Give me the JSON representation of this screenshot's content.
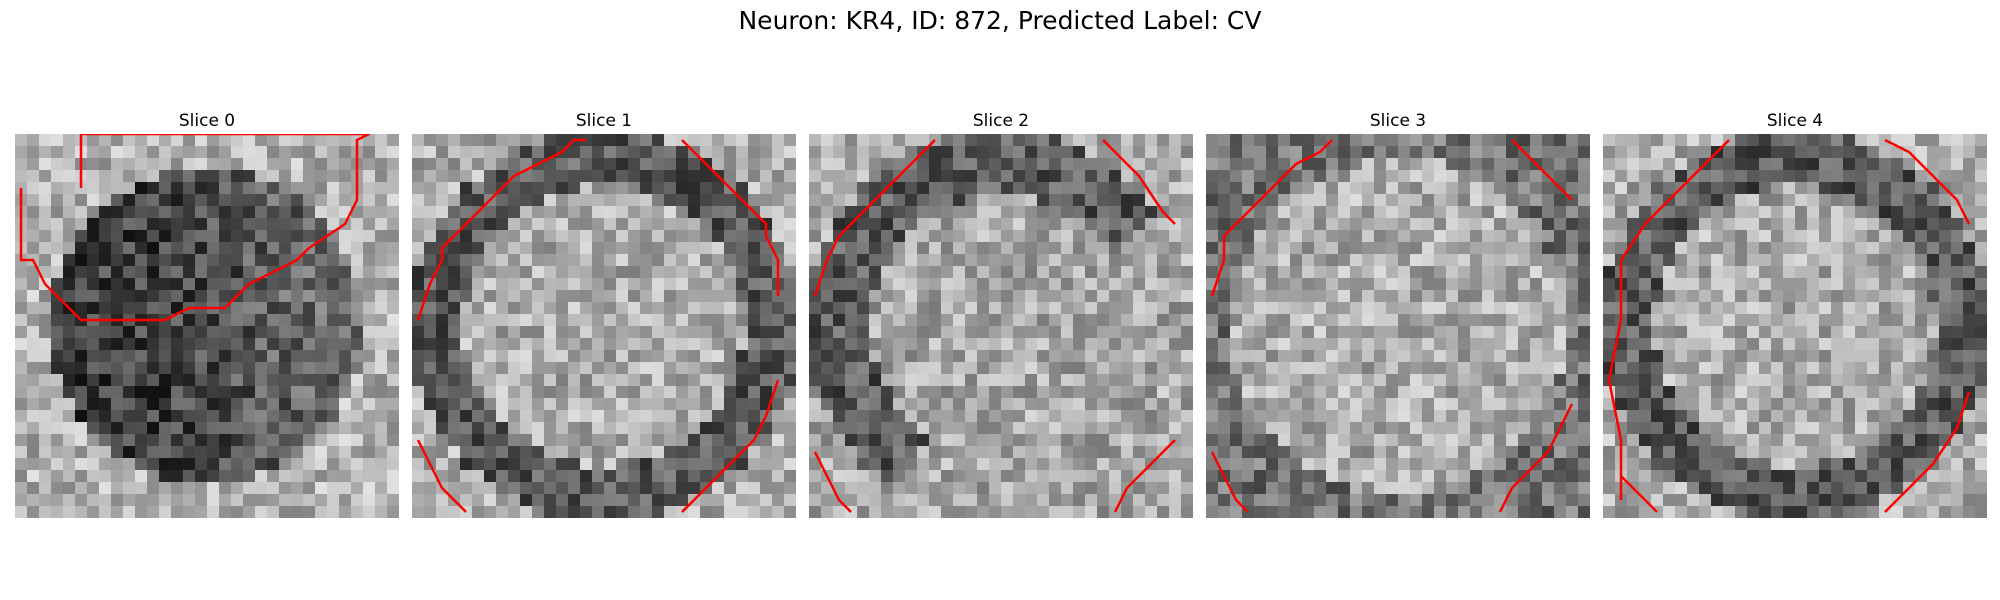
{
  "figure": {
    "title": "Neuron: KR4, ID: 872, Predicted Label: CV",
    "colormap": "gray",
    "contour_color": "#ff0000",
    "grid_size": 32
  },
  "slices": [
    {
      "title": "Slice 0",
      "mean_intensity": 0.38,
      "dark_region": "center disk",
      "contours": [
        [
          [
            5,
            0
          ],
          [
            5,
            -5
          ],
          [
            10,
            -10
          ],
          [
            10,
            -12
          ],
          [
            12,
            -14
          ],
          [
            15,
            -15
          ],
          [
            20,
            -15
          ],
          [
            24,
            -13
          ],
          [
            25,
            -12
          ],
          [
            28,
            -9
          ],
          [
            28,
            -6
          ],
          [
            29,
            -5
          ],
          [
            28,
            -4
          ],
          [
            28,
            1
          ],
          [
            27,
            3
          ],
          [
            24,
            5
          ],
          [
            23,
            6
          ],
          [
            21,
            7
          ],
          [
            19,
            8
          ],
          [
            17,
            10
          ],
          [
            14,
            10
          ],
          [
            12,
            11
          ],
          [
            8,
            11
          ],
          [
            5,
            11
          ],
          [
            4,
            10
          ],
          [
            2,
            8
          ],
          [
            1,
            6
          ],
          [
            0,
            6
          ],
          [
            0,
            0
          ]
        ]
      ]
    },
    {
      "title": "Slice 1",
      "mean_intensity": 0.6,
      "dark_region": "ring",
      "contours": [
        [
          [
            0,
            15
          ],
          [
            1,
            12
          ],
          [
            2,
            10
          ],
          [
            2,
            9
          ],
          [
            4,
            7
          ],
          [
            6,
            5
          ],
          [
            8,
            3
          ],
          [
            10,
            2
          ],
          [
            12,
            1
          ],
          [
            13,
            0
          ],
          [
            14,
            0
          ]
        ],
        [
          [
            22,
            0
          ],
          [
            24,
            2
          ],
          [
            26,
            4
          ],
          [
            29,
            7
          ],
          [
            29,
            8
          ],
          [
            30,
            10
          ],
          [
            30,
            13
          ]
        ],
        [
          [
            0,
            25
          ],
          [
            1,
            27
          ],
          [
            2,
            29
          ],
          [
            4,
            31
          ]
        ],
        [
          [
            30,
            20
          ],
          [
            29,
            23
          ],
          [
            28,
            25
          ],
          [
            26,
            27
          ],
          [
            24,
            29
          ],
          [
            22,
            31
          ]
        ]
      ]
    },
    {
      "title": "Slice 2",
      "mean_intensity": 0.62,
      "dark_region": "upper-left ring",
      "contours": [
        [
          [
            0,
            13
          ],
          [
            1,
            10
          ],
          [
            2,
            8
          ],
          [
            3,
            7
          ],
          [
            5,
            5
          ],
          [
            7,
            3
          ],
          [
            9,
            1
          ],
          [
            10,
            0
          ]
        ],
        [
          [
            24,
            0
          ],
          [
            26,
            2
          ],
          [
            27,
            3
          ],
          [
            29,
            6
          ],
          [
            30,
            7
          ]
        ],
        [
          [
            0,
            26
          ],
          [
            1,
            28
          ],
          [
            2,
            30
          ],
          [
            3,
            31
          ]
        ],
        [
          [
            30,
            25
          ],
          [
            28,
            27
          ],
          [
            26,
            29
          ],
          [
            25,
            31
          ]
        ]
      ]
    },
    {
      "title": "Slice 3",
      "mean_intensity": 0.65,
      "dark_region": "edges",
      "contours": [
        [
          [
            0,
            13
          ],
          [
            1,
            10
          ],
          [
            1,
            8
          ],
          [
            3,
            6
          ],
          [
            5,
            4
          ],
          [
            7,
            2
          ],
          [
            9,
            1
          ],
          [
            10,
            0
          ]
        ],
        [
          [
            25,
            0
          ],
          [
            27,
            2
          ],
          [
            28,
            3
          ],
          [
            30,
            5
          ]
        ],
        [
          [
            0,
            26
          ],
          [
            1,
            28
          ],
          [
            2,
            30
          ],
          [
            3,
            31
          ]
        ],
        [
          [
            30,
            22
          ],
          [
            29,
            24
          ],
          [
            28,
            26
          ],
          [
            26,
            28
          ],
          [
            25,
            29
          ],
          [
            24,
            31
          ]
        ]
      ]
    },
    {
      "title": "Slice 4",
      "mean_intensity": 0.6,
      "dark_region": "ring",
      "contours": [
        [
          [
            1,
            30
          ],
          [
            1,
            28
          ],
          [
            1,
            25
          ],
          [
            0,
            20
          ],
          [
            1,
            15
          ],
          [
            1,
            10
          ],
          [
            3,
            7
          ],
          [
            5,
            5
          ],
          [
            7,
            3
          ],
          [
            9,
            1
          ],
          [
            10,
            0
          ]
        ],
        [
          [
            23,
            0
          ],
          [
            25,
            1
          ],
          [
            27,
            3
          ],
          [
            29,
            5
          ],
          [
            30,
            7
          ]
        ],
        [
          [
            1,
            28
          ],
          [
            3,
            30
          ],
          [
            4,
            31
          ]
        ],
        [
          [
            30,
            21
          ],
          [
            29,
            24
          ],
          [
            27,
            27
          ],
          [
            26,
            28
          ],
          [
            24,
            30
          ],
          [
            23,
            31
          ]
        ]
      ]
    }
  ]
}
